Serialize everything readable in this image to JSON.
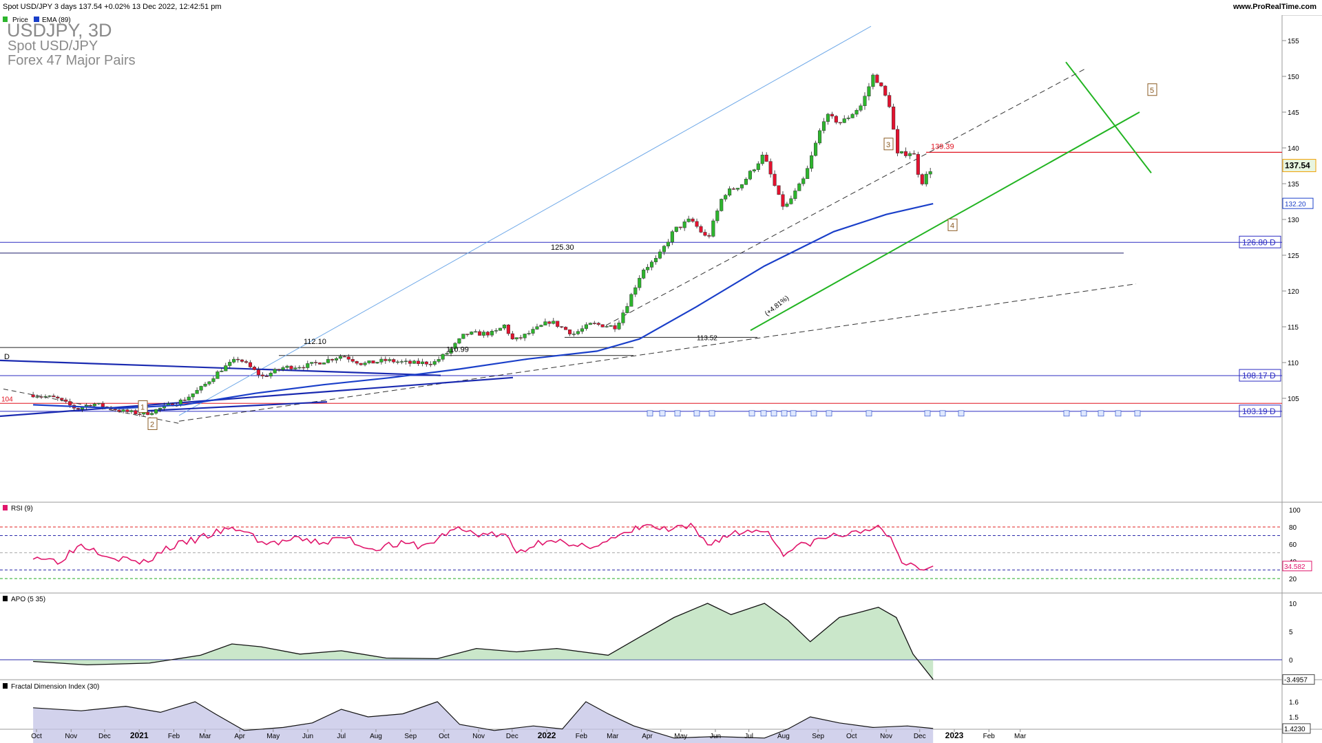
{
  "header": {
    "info": "Spot USD/JPY 3 days 137.54 +0.02% 13 Dec 2022, 12:42:51 pm",
    "brand": "www.ProRealTime.com"
  },
  "legend": {
    "price_label": "Price",
    "ema_label": "EMA (89)"
  },
  "instrument": {
    "title": "USDJPY, 3D",
    "name": "Spot USD/JPY",
    "group": "Forex 47 Major Pairs"
  },
  "colors": {
    "up": "#2db52d",
    "down": "#e3122f",
    "ema": "#1a3fc9",
    "trend_green": "#22b422",
    "resistance_red": "#e0101e",
    "support_blue": "#2b2bc2",
    "fan_blue": "#6ea8e8",
    "rsi": "#e0156b",
    "apo_fill": "#9fd39f",
    "apo_neg_fill": "#d9a0a0",
    "fdi_fill": "#c3c3e6"
  },
  "chart_data": [
    {
      "type": "candlestick",
      "title": "USDJPY, 3D",
      "ylim": [
        101,
        157
      ],
      "y_ticks": [
        105,
        110,
        115,
        120,
        125,
        130,
        135,
        140,
        145,
        150,
        155
      ],
      "x_labels": [
        "Oct",
        "Nov",
        "Dec",
        "2021",
        "Feb",
        "Mar",
        "Apr",
        "May",
        "Jun",
        "Jul",
        "Aug",
        "Sep",
        "Oct",
        "Nov",
        "Dec",
        "2022",
        "Feb",
        "Mar",
        "Apr",
        "May",
        "Jun",
        "Jul",
        "Aug",
        "Sep",
        "Oct",
        "Nov",
        "Dec",
        "2023",
        "Feb",
        "Mar"
      ],
      "last_price": "137.54",
      "ema_last": "132.20",
      "levels": [
        {
          "label": "126.80 D",
          "value": 126.8
        },
        {
          "label": "108.17 D",
          "value": 108.17
        },
        {
          "label": "103.19 D",
          "value": 103.19
        }
      ],
      "annotations": [
        {
          "text": "125.30",
          "value": 125.3
        },
        {
          "text": "112.10",
          "value": 112.1
        },
        {
          "text": "110.99",
          "value": 110.99
        },
        {
          "text": "139.39",
          "value": 139.39
        },
        {
          "text": "113.52",
          "value": 113.52
        },
        {
          "text": "104",
          "value": 104
        },
        {
          "text": "D",
          "value": 110.5
        }
      ],
      "wave_labels": [
        "1",
        "2",
        "3",
        "4",
        "5"
      ],
      "trendline_note": "(+4.81%)",
      "price_path": [
        [
          "2020-09-28",
          105.5
        ],
        [
          "2020-10-19",
          105.0
        ],
        [
          "2020-11-06",
          103.5
        ],
        [
          "2020-11-20",
          104.3
        ],
        [
          "2020-12-17",
          103.2
        ],
        [
          "2021-01-06",
          102.8
        ],
        [
          "2021-01-20",
          103.6
        ],
        [
          "2021-02-10",
          104.8
        ],
        [
          "2021-02-26",
          106.5
        ],
        [
          "2021-03-15",
          109.0
        ],
        [
          "2021-03-31",
          110.6
        ],
        [
          "2021-04-21",
          108.0
        ],
        [
          "2021-05-10",
          109.3
        ],
        [
          "2021-06-01",
          109.6
        ],
        [
          "2021-06-15",
          110.2
        ],
        [
          "2021-07-02",
          111.0
        ],
        [
          "2021-07-20",
          109.8
        ],
        [
          "2021-08-10",
          110.3
        ],
        [
          "2021-09-01",
          109.9
        ],
        [
          "2021-09-22",
          110.0
        ],
        [
          "2021-10-05",
          111.5
        ],
        [
          "2021-10-20",
          114.0
        ],
        [
          "2021-11-15",
          114.1
        ],
        [
          "2021-11-24",
          115.2
        ],
        [
          "2021-12-02",
          113.0
        ],
        [
          "2021-12-15",
          114.0
        ],
        [
          "2022-01-04",
          115.8
        ],
        [
          "2022-01-25",
          114.0
        ],
        [
          "2022-02-10",
          115.4
        ],
        [
          "2022-03-04",
          115.0
        ],
        [
          "2022-03-15",
          118.5
        ],
        [
          "2022-03-28",
          123.0
        ],
        [
          "2022-04-10",
          124.5
        ],
        [
          "2022-04-25",
          128.5
        ],
        [
          "2022-05-10",
          130.0
        ],
        [
          "2022-05-25",
          127.2
        ],
        [
          "2022-06-08",
          133.5
        ],
        [
          "2022-06-25",
          135.0
        ],
        [
          "2022-07-14",
          139.0
        ],
        [
          "2022-07-28",
          133.0
        ],
        [
          "2022-08-02",
          131.5
        ],
        [
          "2022-08-20",
          135.8
        ],
        [
          "2022-09-07",
          144.5
        ],
        [
          "2022-09-22",
          143.5
        ],
        [
          "2022-10-10",
          146.0
        ],
        [
          "2022-10-21",
          150.4
        ],
        [
          "2022-11-04",
          146.0
        ],
        [
          "2022-11-11",
          139.0
        ],
        [
          "2022-11-25",
          139.5
        ],
        [
          "2022-12-02",
          135.0
        ],
        [
          "2022-12-13",
          137.54
        ]
      ],
      "ema_path": [
        [
          "2020-09-28",
          104.1
        ],
        [
          "2020-12-15",
          103.6
        ],
        [
          "2021-02-10",
          104.1
        ],
        [
          "2021-04-15",
          105.7
        ],
        [
          "2021-06-15",
          106.9
        ],
        [
          "2021-08-15",
          107.9
        ],
        [
          "2021-10-15",
          109.1
        ],
        [
          "2021-12-15",
          110.5
        ],
        [
          "2022-02-15",
          111.6
        ],
        [
          "2022-03-25",
          113.3
        ],
        [
          "2022-05-15",
          117.8
        ],
        [
          "2022-07-15",
          123.5
        ],
        [
          "2022-09-15",
          128.3
        ],
        [
          "2022-11-01",
          130.7
        ],
        [
          "2022-12-13",
          132.2
        ]
      ]
    },
    {
      "type": "line",
      "title": "RSI (9)",
      "ylim": [
        10,
        100
      ],
      "y_ticks": [
        100,
        80,
        60,
        40,
        20
      ],
      "reference_lines": [
        80,
        70,
        50,
        30,
        20
      ],
      "last_value": "34.582",
      "series": [
        {
          "points": [
            [
              "2020-09-28",
              47
            ],
            [
              "2020-10-20",
              40
            ],
            [
              "2020-11-10",
              60
            ],
            [
              "2020-12-10",
              45
            ],
            [
              "2021-01-05",
              38
            ],
            [
              "2021-01-25",
              55
            ],
            [
              "2021-02-20",
              65
            ],
            [
              "2021-03-15",
              75
            ],
            [
              "2021-04-01",
              78
            ],
            [
              "2021-04-25",
              60
            ],
            [
              "2021-05-20",
              65
            ],
            [
              "2021-06-15",
              62
            ],
            [
              "2021-07-05",
              68
            ],
            [
              "2021-07-25",
              55
            ],
            [
              "2021-08-20",
              60
            ],
            [
              "2021-09-15",
              58
            ],
            [
              "2021-10-10",
              78
            ],
            [
              "2021-11-01",
              72
            ],
            [
              "2021-11-25",
              70
            ],
            [
              "2021-12-05",
              50
            ],
            [
              "2022-01-05",
              68
            ],
            [
              "2022-01-25",
              55
            ],
            [
              "2022-02-20",
              62
            ],
            [
              "2022-03-15",
              72
            ],
            [
              "2022-03-28",
              82
            ],
            [
              "2022-04-20",
              76
            ],
            [
              "2022-05-10",
              80
            ],
            [
              "2022-05-25",
              60
            ],
            [
              "2022-06-15",
              72
            ],
            [
              "2022-07-15",
              78
            ],
            [
              "2022-08-01",
              50
            ],
            [
              "2022-08-25",
              62
            ],
            [
              "2022-09-15",
              70
            ],
            [
              "2022-10-05",
              72
            ],
            [
              "2022-10-21",
              82
            ],
            [
              "2022-11-05",
              65
            ],
            [
              "2022-11-15",
              40
            ],
            [
              "2022-12-05",
              30
            ],
            [
              "2022-12-13",
              34.582
            ]
          ]
        }
      ]
    },
    {
      "type": "area",
      "title": "APO (5 35)",
      "ylim": [
        -6,
        12
      ],
      "y_ticks": [
        10,
        5,
        0
      ],
      "last_value": "-3.4957",
      "series": [
        {
          "points": [
            [
              "2020-09-28",
              -0.3
            ],
            [
              "2020-11-15",
              -0.9
            ],
            [
              "2021-01-10",
              -0.6
            ],
            [
              "2021-02-25",
              0.8
            ],
            [
              "2021-03-25",
              2.8
            ],
            [
              "2021-04-20",
              2.3
            ],
            [
              "2021-05-25",
              1.0
            ],
            [
              "2021-07-01",
              1.6
            ],
            [
              "2021-08-10",
              0.3
            ],
            [
              "2021-09-25",
              0.2
            ],
            [
              "2021-10-30",
              2.0
            ],
            [
              "2021-12-05",
              1.4
            ],
            [
              "2022-01-10",
              2.0
            ],
            [
              "2022-02-25",
              0.8
            ],
            [
              "2022-03-25",
              4.0
            ],
            [
              "2022-04-25",
              7.5
            ],
            [
              "2022-05-25",
              10.0
            ],
            [
              "2022-06-15",
              8.0
            ],
            [
              "2022-07-15",
              10.0
            ],
            [
              "2022-08-05",
              7.0
            ],
            [
              "2022-08-25",
              3.2
            ],
            [
              "2022-09-20",
              7.5
            ],
            [
              "2022-10-10",
              8.5
            ],
            [
              "2022-10-25",
              9.3
            ],
            [
              "2022-11-10",
              7.5
            ],
            [
              "2022-11-25",
              1.0
            ],
            [
              "2022-12-13",
              -3.4957
            ]
          ]
        }
      ]
    },
    {
      "type": "area",
      "title": "Fractal Dimension Index (30)",
      "ylim": [
        1.22,
        1.78
      ],
      "y_ticks": [
        1.6,
        1.5
      ],
      "last_value": "1.4230",
      "series": [
        {
          "points": [
            [
              "2020-09-28",
              1.56
            ],
            [
              "2020-11-10",
              1.54
            ],
            [
              "2020-12-20",
              1.57
            ],
            [
              "2021-01-20",
              1.53
            ],
            [
              "2021-02-20",
              1.6
            ],
            [
              "2021-03-10",
              1.52
            ],
            [
              "2021-04-05",
              1.41
            ],
            [
              "2021-05-10",
              1.43
            ],
            [
              "2021-06-05",
              1.46
            ],
            [
              "2021-07-01",
              1.55
            ],
            [
              "2021-07-25",
              1.5
            ],
            [
              "2021-08-25",
              1.52
            ],
            [
              "2021-09-25",
              1.6
            ],
            [
              "2021-10-15",
              1.45
            ],
            [
              "2021-11-15",
              1.41
            ],
            [
              "2021-12-20",
              1.44
            ],
            [
              "2022-01-15",
              1.42
            ],
            [
              "2022-02-05",
              1.6
            ],
            [
              "2022-02-25",
              1.52
            ],
            [
              "2022-03-20",
              1.44
            ],
            [
              "2022-04-25",
              1.36
            ],
            [
              "2022-06-01",
              1.37
            ],
            [
              "2022-07-15",
              1.36
            ],
            [
              "2022-08-05",
              1.42
            ],
            [
              "2022-08-25",
              1.5
            ],
            [
              "2022-09-20",
              1.46
            ],
            [
              "2022-10-20",
              1.43
            ],
            [
              "2022-11-20",
              1.44
            ],
            [
              "2022-12-13",
              1.423
            ]
          ]
        }
      ]
    }
  ]
}
